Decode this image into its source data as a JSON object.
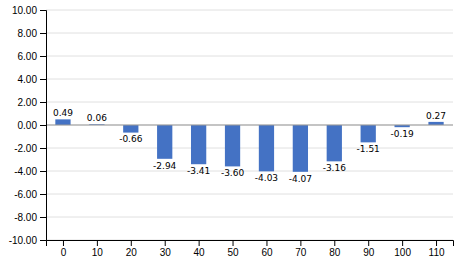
{
  "chart_data": {
    "type": "bar",
    "x": [
      0,
      10,
      20,
      30,
      40,
      50,
      60,
      70,
      80,
      90,
      100,
      110
    ],
    "values": [
      0.49,
      0.06,
      -0.66,
      -2.94,
      -3.41,
      -3.6,
      -4.03,
      -4.07,
      -3.16,
      -1.51,
      -0.19,
      0.27
    ],
    "value_labels": [
      "0.49",
      "0.06",
      "-0.66",
      "-2.94",
      "-3.41",
      "-3.60",
      "-4.03",
      "-4.07",
      "-3.16",
      "-1.51",
      "-0.19",
      "0.27"
    ],
    "data_labels": true,
    "color": "#4472c4",
    "xlim": [
      -5,
      115
    ],
    "xticks": [
      0,
      10,
      20,
      30,
      40,
      50,
      60,
      70,
      80,
      90,
      100,
      110
    ],
    "ylim": [
      -10,
      10
    ],
    "yticks": [
      {
        "value": -10,
        "label": "-10.00"
      },
      {
        "value": -8,
        "label": "-8.00"
      },
      {
        "value": -6,
        "label": "-6.00"
      },
      {
        "value": -4,
        "label": "-4.00"
      },
      {
        "value": -2,
        "label": "-2.00"
      },
      {
        "value": 0,
        "label": "0.00"
      },
      {
        "value": 2,
        "label": "2.00"
      },
      {
        "value": 4,
        "label": "4.00"
      },
      {
        "value": 6,
        "label": "6.00"
      },
      {
        "value": 8,
        "label": "8.00"
      },
      {
        "value": 10,
        "label": "10.00"
      }
    ],
    "grid": true
  }
}
